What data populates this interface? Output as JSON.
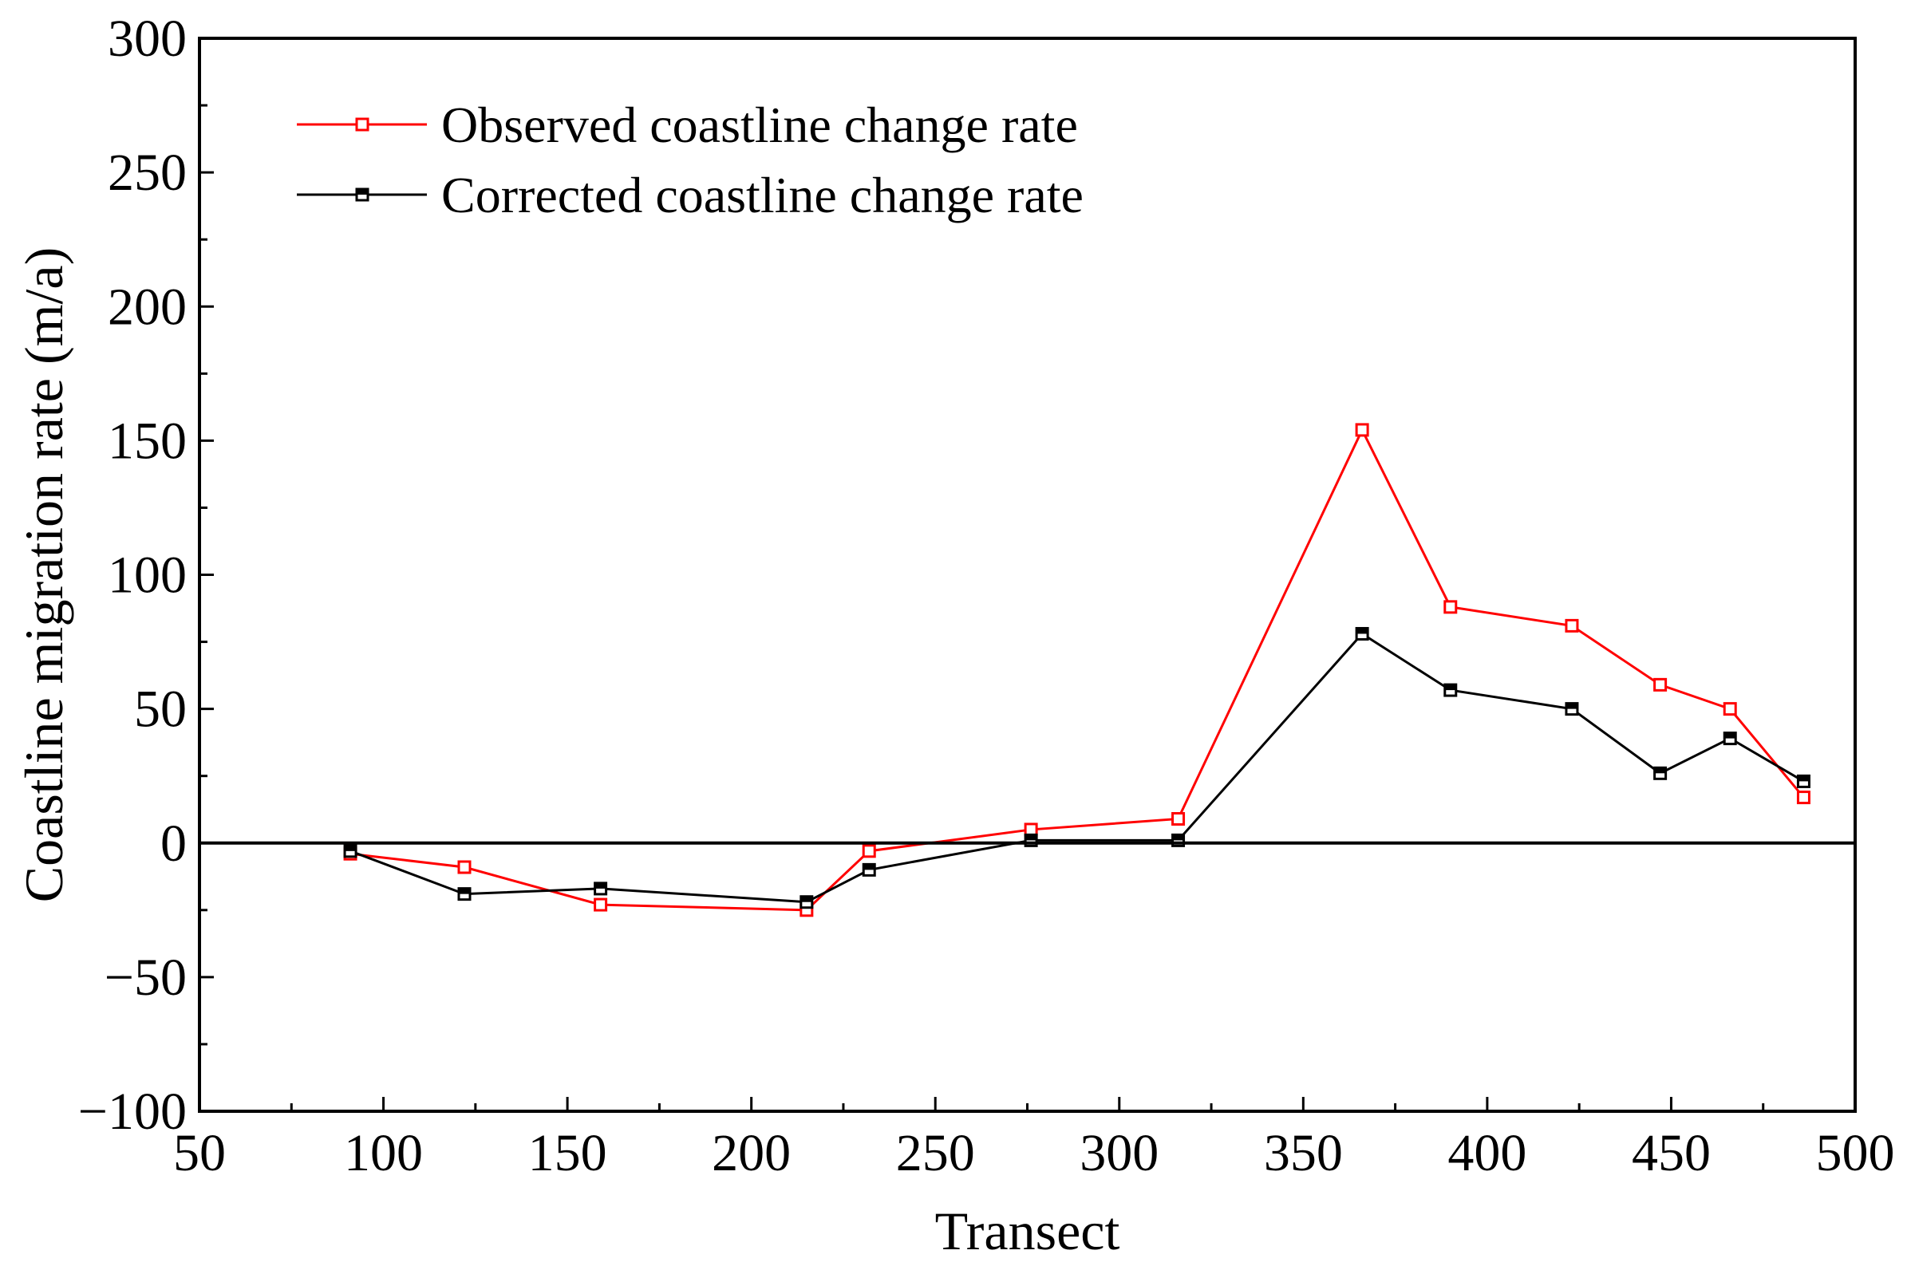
{
  "chart_data": {
    "type": "line",
    "title": "",
    "xlabel": "Transect",
    "ylabel": "Coastline migration rate (m/a)",
    "xlim": [
      50,
      500
    ],
    "ylim": [
      -100,
      300
    ],
    "x_ticks": [
      50,
      100,
      150,
      200,
      250,
      300,
      350,
      400,
      450,
      500
    ],
    "y_ticks": [
      -100,
      -50,
      0,
      50,
      100,
      150,
      200,
      250,
      300
    ],
    "x_tick_labels": [
      "50",
      "100",
      "150",
      "200",
      "250",
      "300",
      "350",
      "400",
      "450",
      "500"
    ],
    "y_tick_labels": [
      "−100",
      "−50",
      "0",
      "50",
      "100",
      "150",
      "200",
      "250",
      "300"
    ],
    "zero_line": true,
    "grid": false,
    "legend_position": "top-left",
    "series": [
      {
        "name": "Observed coastline change rate",
        "color": "#ff0000",
        "marker": "open-square",
        "x": [
          91,
          122,
          159,
          215,
          232,
          276,
          316,
          366,
          390,
          423,
          447,
          466,
          486
        ],
        "y": [
          -4,
          -9,
          -23,
          -25,
          -3,
          5,
          9,
          154,
          88,
          81,
          59,
          50,
          17
        ]
      },
      {
        "name": "Corrected coastline change rate",
        "color": "#000000",
        "marker": "half-filled-square",
        "x": [
          91,
          122,
          159,
          215,
          232,
          276,
          316,
          366,
          390,
          423,
          447,
          466,
          486
        ],
        "y": [
          -3,
          -19,
          -17,
          -22,
          -10,
          1,
          1,
          78,
          57,
          50,
          26,
          39,
          23
        ]
      }
    ]
  }
}
